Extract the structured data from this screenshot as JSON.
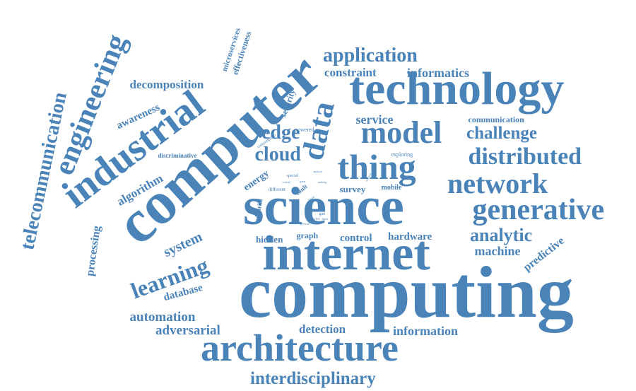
{
  "text_color": "#4a83b8",
  "background_color": "#ffffff",
  "words": [
    {
      "name": "word-computing",
      "text": "computing"
    },
    {
      "name": "word-internet",
      "text": "internet"
    },
    {
      "name": "word-science",
      "text": "science"
    },
    {
      "name": "word-computer",
      "text": "computer"
    },
    {
      "name": "word-technology",
      "text": "technology"
    },
    {
      "name": "word-architecture",
      "text": "architecture"
    },
    {
      "name": "word-industrial",
      "text": "industrial"
    },
    {
      "name": "word-engineering",
      "text": "engineering"
    },
    {
      "name": "word-telecommunication",
      "text": "telecommunication"
    },
    {
      "name": "word-thing",
      "text": "thing"
    },
    {
      "name": "word-model",
      "text": "model"
    },
    {
      "name": "word-data",
      "text": "data"
    },
    {
      "name": "word-network",
      "text": "network"
    },
    {
      "name": "word-generative",
      "text": "generative"
    },
    {
      "name": "word-distributed",
      "text": "distributed"
    },
    {
      "name": "word-application",
      "text": "application"
    },
    {
      "name": "word-learning",
      "text": "learning"
    },
    {
      "name": "word-cloud",
      "text": "cloud"
    },
    {
      "name": "word-edge",
      "text": "edge"
    },
    {
      "name": "word-challenge",
      "text": "challenge"
    },
    {
      "name": "word-analytic",
      "text": "analytic"
    },
    {
      "name": "word-interdisciplinary",
      "text": "interdisciplinary"
    },
    {
      "name": "word-decomposition",
      "text": "decomposition"
    },
    {
      "name": "word-informatics",
      "text": "informatics"
    },
    {
      "name": "word-constraint",
      "text": "constraint"
    },
    {
      "name": "word-service",
      "text": "service"
    },
    {
      "name": "word-system",
      "text": "system"
    },
    {
      "name": "word-machine",
      "text": "machine"
    },
    {
      "name": "word-algorithm",
      "text": "algorithm"
    },
    {
      "name": "word-awareness",
      "text": "awareness"
    },
    {
      "name": "word-automation",
      "text": "automation"
    },
    {
      "name": "word-adversarial",
      "text": "adversarial"
    },
    {
      "name": "word-detection",
      "text": "detection"
    },
    {
      "name": "word-information",
      "text": "information"
    },
    {
      "name": "word-database",
      "text": "database"
    },
    {
      "name": "word-processing",
      "text": "processing"
    },
    {
      "name": "word-predictive",
      "text": "predictive"
    },
    {
      "name": "word-hardware",
      "text": "hardware"
    },
    {
      "name": "word-control",
      "text": "control"
    },
    {
      "name": "word-survey",
      "text": "survey"
    },
    {
      "name": "word-energy",
      "text": "energy"
    },
    {
      "name": "word-security",
      "text": "security"
    },
    {
      "name": "word-microservices",
      "text": "microservices"
    },
    {
      "name": "word-effectiveness",
      "text": "effectiveness"
    },
    {
      "name": "word-communication",
      "text": "communication"
    },
    {
      "name": "word-hidden",
      "text": "hidden"
    },
    {
      "name": "word-graph",
      "text": "graph"
    },
    {
      "name": "word-editorial",
      "text": "editorial"
    },
    {
      "name": "word-mobile",
      "text": "mobile"
    },
    {
      "name": "word-discriminative",
      "text": "discriminative"
    },
    {
      "name": "word-exploring",
      "text": "exploring"
    },
    {
      "name": "word-powered",
      "text": "powered"
    },
    {
      "name": "word-consumption",
      "text": "consumption"
    },
    {
      "name": "word-different",
      "text": "different"
    },
    {
      "name": "word-fault",
      "text": "fault"
    },
    {
      "name": "word-special",
      "text": "special"
    },
    {
      "name": "word-gan",
      "text": "gan"
    },
    {
      "name": "word-device",
      "text": "device"
    },
    {
      "name": "word-issue",
      "text": "issue"
    },
    {
      "name": "word-physical",
      "text": "physical"
    },
    {
      "name": "word-dgms",
      "text": "dgms"
    },
    {
      "name": "word-analysis",
      "text": "analysis"
    },
    {
      "name": "word-making",
      "text": "making"
    },
    {
      "name": "word-critical",
      "text": "critical"
    },
    {
      "name": "word-guest",
      "text": "guest"
    },
    {
      "name": "word-privacy",
      "text": "privacy"
    },
    {
      "name": "word-national",
      "text": "national"
    }
  ]
}
